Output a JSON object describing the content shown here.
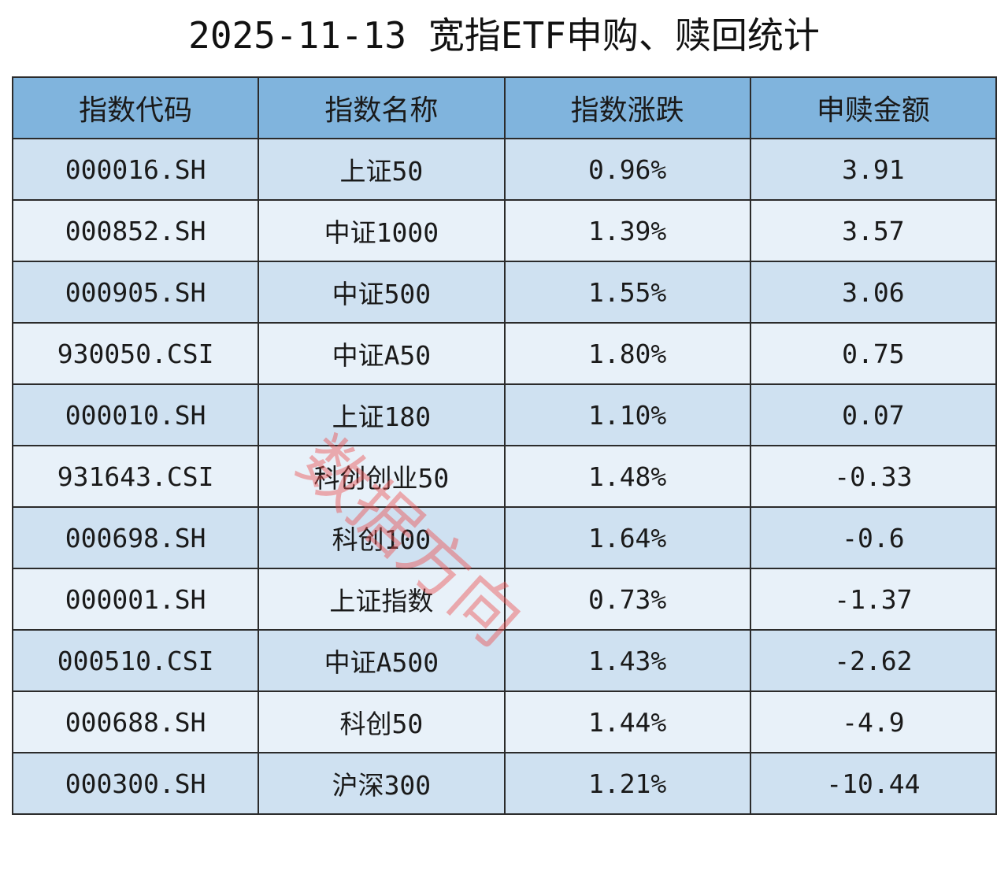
{
  "header": {
    "title": "2025-11-13 宽指ETF申购、赎回统计"
  },
  "table": {
    "columns": [
      "指数代码",
      "指数名称",
      "指数涨跌",
      "申赎金额"
    ],
    "rows": [
      [
        "000016.SH",
        "上证50",
        "0.96%",
        "3.91"
      ],
      [
        "000852.SH",
        "中证1000",
        "1.39%",
        "3.57"
      ],
      [
        "000905.SH",
        "中证500",
        "1.55%",
        "3.06"
      ],
      [
        "930050.CSI",
        "中证A50",
        "1.80%",
        "0.75"
      ],
      [
        "000010.SH",
        "上证180",
        "1.10%",
        "0.07"
      ],
      [
        "931643.CSI",
        "科创创业50",
        "1.48%",
        "-0.33"
      ],
      [
        "000698.SH",
        "科创100",
        "1.64%",
        "-0.6"
      ],
      [
        "000001.SH",
        "上证指数",
        "0.73%",
        "-1.37"
      ],
      [
        "000510.CSI",
        "中证A500",
        "1.43%",
        "-2.62"
      ],
      [
        "000688.SH",
        "科创50",
        "1.44%",
        "-4.9"
      ],
      [
        "000300.SH",
        "沪深300",
        "1.21%",
        "-10.44"
      ]
    ]
  },
  "watermark": "数据方向"
}
